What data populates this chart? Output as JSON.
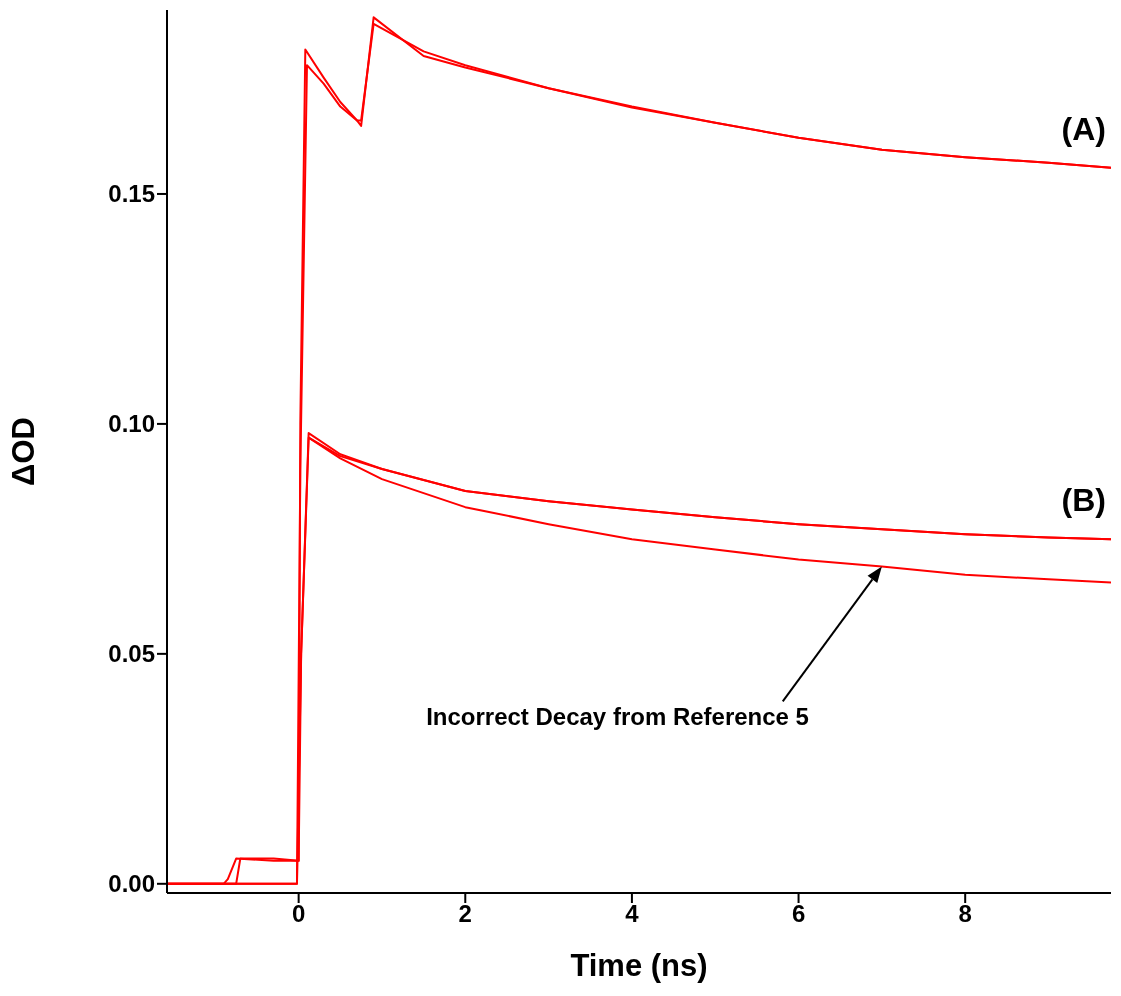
{
  "chart_data": {
    "type": "line",
    "xlabel": "Time (ns)",
    "ylabel": "ΔOD",
    "xlim": [
      -1.58,
      9.75
    ],
    "ylim": [
      -0.002,
      0.19
    ],
    "xticks": [
      0,
      2,
      4,
      6,
      8
    ],
    "yticks": [
      {
        "value": 0,
        "label": "0.00"
      },
      {
        "value": 0.05,
        "label": "0.05"
      },
      {
        "value": 0.1,
        "label": "0.10"
      },
      {
        "value": 0.15,
        "label": "0.15"
      }
    ],
    "grid": false,
    "legend": false,
    "marker": "none",
    "line_style": "solid",
    "series": [
      {
        "name": "(A)",
        "color": "#ff0000",
        "x": [
          -1.58,
          -0.9,
          -0.85,
          -0.75,
          -0.3,
          0,
          0.02,
          0.08,
          0.3,
          0.5,
          0.7,
          0.75,
          0.9,
          1.5,
          2,
          3,
          4,
          5,
          6,
          7,
          8,
          9,
          9.75
        ],
        "values": [
          0,
          0,
          0.001,
          0.0055,
          0.005,
          0.005,
          0.1,
          0.1814,
          0.1753,
          0.17,
          0.166,
          0.1648,
          0.1884,
          0.18,
          0.1775,
          0.173,
          0.1688,
          0.1655,
          0.1622,
          0.1596,
          0.158,
          0.1568,
          0.1557
        ]
      },
      {
        "color": "#ff0000",
        "x": [
          -1.58,
          -0.02,
          0.02,
          0.1,
          0.3,
          0.5,
          0.7,
          0.75,
          0.9,
          1.5,
          2,
          3,
          4,
          5,
          6,
          7,
          8,
          9,
          9.75
        ],
        "values": [
          0,
          0,
          0.09,
          0.178,
          0.174,
          0.169,
          0.166,
          0.166,
          0.187,
          0.181,
          0.178,
          0.173,
          0.169,
          0.1655,
          0.1622,
          0.1596,
          0.158,
          0.1568,
          0.1557
        ]
      },
      {
        "name": "(B)",
        "color": "#ff0000",
        "x": [
          -1.58,
          -0.75,
          -0.7,
          -0.3,
          0,
          0.03,
          0.12,
          0.5,
          1,
          2,
          3,
          4,
          5,
          6,
          7,
          8,
          9,
          9.75
        ],
        "values": [
          0,
          0,
          0.0055,
          0.0055,
          0.005,
          0.05,
          0.098,
          0.0934,
          0.0902,
          0.0854,
          0.0832,
          0.0814,
          0.0797,
          0.0782,
          0.0771,
          0.076,
          0.0753,
          0.0749
        ]
      },
      {
        "color": "#ff0000",
        "x": [
          -1.58,
          -0.02,
          0.03,
          0.12,
          0.5,
          1,
          2,
          3,
          4,
          5,
          6,
          7,
          8,
          9,
          9.75
        ],
        "values": [
          0,
          0,
          0.05,
          0.097,
          0.093,
          0.0902,
          0.0854,
          0.0832,
          0.0814,
          0.0797,
          0.0782,
          0.0771,
          0.076,
          0.0753,
          0.0749
        ]
      },
      {
        "color": "#ff0000",
        "x": [
          0.12,
          0.5,
          1,
          2,
          3,
          4,
          5,
          6,
          7,
          8,
          9,
          9.75
        ],
        "values": [
          0.097,
          0.0925,
          0.088,
          0.0819,
          0.0782,
          0.0749,
          0.0727,
          0.0705,
          0.069,
          0.0672,
          0.0662,
          0.0655
        ]
      }
    ],
    "annotations": [
      "Incorrect Decay from Reference 5"
    ]
  }
}
